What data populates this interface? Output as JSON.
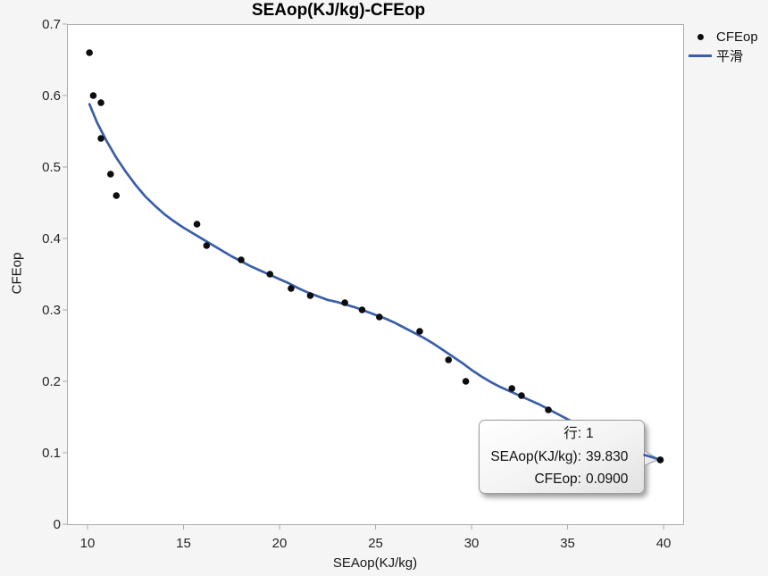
{
  "title": "SEAop(KJ/kg)-CFEop",
  "chart_data": {
    "type": "scatter",
    "title": "SEAop(KJ/kg)-CFEop",
    "xlabel": "SEAop(KJ/kg)",
    "ylabel": "CFEop",
    "xlim": [
      8.93,
      41.02
    ],
    "ylim": [
      0,
      0.7
    ],
    "x_ticks": [
      10,
      15,
      20,
      25,
      30,
      35,
      40
    ],
    "y_ticks": [
      0,
      0.1,
      0.2,
      0.3,
      0.4,
      0.5,
      0.6,
      0.7
    ],
    "grid": false,
    "legend_position": "outside-top-right",
    "series": [
      {
        "name": "CFEop",
        "kind": "scatter",
        "color": "#0d0d0d",
        "points": [
          [
            10.1,
            0.66
          ],
          [
            10.3,
            0.6
          ],
          [
            10.7,
            0.59
          ],
          [
            10.7,
            0.54
          ],
          [
            11.2,
            0.49
          ],
          [
            11.5,
            0.46
          ],
          [
            15.7,
            0.42
          ],
          [
            16.2,
            0.39
          ],
          [
            18,
            0.37
          ],
          [
            19.5,
            0.35
          ],
          [
            20.6,
            0.33
          ],
          [
            21.6,
            0.32
          ],
          [
            23.4,
            0.31
          ],
          [
            24.3,
            0.3
          ],
          [
            25.2,
            0.29
          ],
          [
            27.3,
            0.27
          ],
          [
            28.8,
            0.23
          ],
          [
            29.7,
            0.2
          ],
          [
            32.1,
            0.19
          ],
          [
            32.6,
            0.18
          ],
          [
            34,
            0.16
          ],
          [
            39.83,
            0.09
          ]
        ]
      },
      {
        "name": "平滑",
        "kind": "line",
        "color": "#3a5fa8",
        "points": [
          [
            10.1,
            0.588
          ],
          [
            10.5,
            0.562
          ],
          [
            11,
            0.536
          ],
          [
            11.5,
            0.513
          ],
          [
            12,
            0.493
          ],
          [
            12.5,
            0.475
          ],
          [
            13,
            0.459
          ],
          [
            13.5,
            0.446
          ],
          [
            14,
            0.434
          ],
          [
            14.5,
            0.424
          ],
          [
            15,
            0.415
          ],
          [
            15.5,
            0.407
          ],
          [
            16,
            0.399
          ],
          [
            16.5,
            0.391
          ],
          [
            17,
            0.383
          ],
          [
            17.5,
            0.375
          ],
          [
            18,
            0.368
          ],
          [
            18.5,
            0.361
          ],
          [
            19,
            0.355
          ],
          [
            19.5,
            0.349
          ],
          [
            20,
            0.343
          ],
          [
            20.5,
            0.337
          ],
          [
            21,
            0.33
          ],
          [
            21.5,
            0.324
          ],
          [
            22,
            0.319
          ],
          [
            22.5,
            0.314
          ],
          [
            23,
            0.311
          ],
          [
            23.5,
            0.307
          ],
          [
            24,
            0.303
          ],
          [
            24.5,
            0.298
          ],
          [
            25,
            0.293
          ],
          [
            25.5,
            0.288
          ],
          [
            26,
            0.282
          ],
          [
            26.5,
            0.275
          ],
          [
            27,
            0.268
          ],
          [
            27.5,
            0.261
          ],
          [
            28,
            0.253
          ],
          [
            28.5,
            0.244
          ],
          [
            29,
            0.235
          ],
          [
            29.5,
            0.226
          ],
          [
            30,
            0.216
          ],
          [
            30.5,
            0.207
          ],
          [
            31,
            0.199
          ],
          [
            31.5,
            0.192
          ],
          [
            32,
            0.186
          ],
          [
            32.5,
            0.18
          ],
          [
            33,
            0.174
          ],
          [
            33.5,
            0.168
          ],
          [
            34,
            0.161
          ],
          [
            34.5,
            0.154
          ],
          [
            35,
            0.147
          ],
          [
            35.5,
            0.14
          ],
          [
            36,
            0.133
          ],
          [
            36.5,
            0.126
          ],
          [
            37,
            0.12
          ],
          [
            37.5,
            0.114
          ],
          [
            38,
            0.108
          ],
          [
            38.5,
            0.102
          ],
          [
            39,
            0.097
          ],
          [
            39.5,
            0.093
          ],
          [
            39.83,
            0.09
          ]
        ]
      }
    ]
  },
  "legend": {
    "items": [
      {
        "label": "CFEop",
        "marker": "dot",
        "color": "#0d0d0d"
      },
      {
        "label": "平滑",
        "marker": "line",
        "color": "#3a5fa8"
      }
    ]
  },
  "tooltip": {
    "rows": [
      {
        "label": "行:",
        "value": "1"
      },
      {
        "label": "SEAop(KJ/kg):",
        "value": "39.830"
      },
      {
        "label": "CFEop:",
        "value": "0.0900"
      }
    ],
    "anchor_x": 39.83,
    "anchor_y": 0.09
  },
  "colors": {
    "background": "#f5f5f6",
    "plot_background": "#ffffff",
    "frame": "#ababab",
    "tick": "#ababab",
    "tick_label": "#262626",
    "axis_label": "#161616",
    "line": "#3a5fa8",
    "marker": "#0d0d0d",
    "tooltip_border": "#9a9a9a",
    "pointer_fill": "#ececec"
  }
}
